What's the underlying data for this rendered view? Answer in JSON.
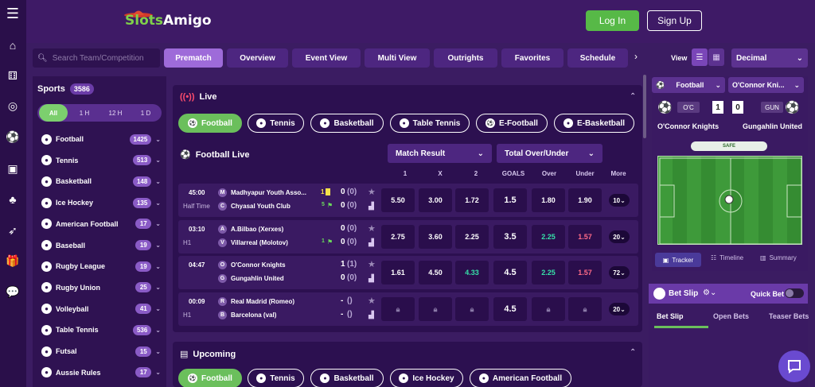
{
  "brand": {
    "part1": "Slots",
    "part2": "Amigo"
  },
  "header": {
    "login": "Log In",
    "signup": "Sign Up"
  },
  "search": {
    "placeholder": "Search Team/Competition"
  },
  "nav_tabs": [
    "Prematch",
    "Overview",
    "Event View",
    "Multi View",
    "Outrights",
    "Favorites",
    "Schedule"
  ],
  "view": {
    "label": "View",
    "odds_format": "Decimal"
  },
  "sports": {
    "title": "Sports",
    "total": "3586",
    "time_filters": [
      "All",
      "1 H",
      "12 H",
      "1 D"
    ],
    "items": [
      {
        "name": "Football",
        "count": "1425",
        "icon": "football-icon"
      },
      {
        "name": "Tennis",
        "count": "513",
        "icon": "tennis-icon"
      },
      {
        "name": "Basketball",
        "count": "148",
        "icon": "basketball-icon"
      },
      {
        "name": "Ice Hockey",
        "count": "135",
        "icon": "ice-hockey-icon"
      },
      {
        "name": "American Football",
        "count": "17",
        "icon": "american-football-icon"
      },
      {
        "name": "Baseball",
        "count": "19",
        "icon": "baseball-icon"
      },
      {
        "name": "Rugby League",
        "count": "19",
        "icon": "rugby-league-icon"
      },
      {
        "name": "Rugby Union",
        "count": "25",
        "icon": "rugby-union-icon"
      },
      {
        "name": "Volleyball",
        "count": "41",
        "icon": "volleyball-icon"
      },
      {
        "name": "Table Tennis",
        "count": "536",
        "icon": "table-tennis-icon"
      },
      {
        "name": "Futsal",
        "count": "15",
        "icon": "futsal-icon"
      },
      {
        "name": "Aussie Rules",
        "count": "17",
        "icon": "aussie-rules-icon"
      }
    ]
  },
  "live": {
    "title": "Live",
    "sport_tabs": [
      "Football",
      "Tennis",
      "Basketball",
      "Table Tennis",
      "E-Football",
      "E-Basketball"
    ],
    "section": "Football Live",
    "markets": [
      "Match Result",
      "Total Over/Under"
    ],
    "columns": [
      "1",
      "X",
      "2",
      "GOALS",
      "Over",
      "Under",
      "More"
    ],
    "matches": [
      {
        "time": "45:00",
        "period": "Half Time",
        "home": "Madhyapur Youth Asso...",
        "away": "Chyasal Youth Club",
        "home_letter": "M",
        "away_letter": "C",
        "home_cards": "1",
        "away_cards": "5",
        "home_score": "0",
        "home_sub": "(0)",
        "away_score": "0",
        "away_sub": "(0)",
        "o1": "5.50",
        "ox": "3.00",
        "o2": "1.72",
        "goals": "1.5",
        "over": "1.80",
        "under": "1.90",
        "more": "10"
      },
      {
        "time": "03:10",
        "period": "H1",
        "home": "A.Bilbao (Xerxes)",
        "away": "Villarreal (Molotov)",
        "home_letter": "A",
        "away_letter": "V",
        "home_cards": "",
        "away_cards": "1",
        "home_score": "0",
        "home_sub": "(0)",
        "away_score": "0",
        "away_sub": "(0)",
        "o1": "2.75",
        "ox": "3.60",
        "o2": "2.25",
        "goals": "3.5",
        "over": "2.25",
        "under": "1.57",
        "more": "20"
      },
      {
        "time": "04:47",
        "period": "",
        "home": "O'Connor Knights",
        "away": "Gungahlin United",
        "home_letter": "O",
        "away_letter": "G",
        "home_cards": "",
        "away_cards": "",
        "home_score": "1",
        "home_sub": "(1)",
        "away_score": "0",
        "away_sub": "(0)",
        "o1": "1.61",
        "ox": "4.50",
        "o2": "4.33",
        "goals": "4.5",
        "over": "2.25",
        "under": "1.57",
        "more": "72"
      },
      {
        "time": "00:09",
        "period": "H1",
        "home": "Real Madrid (Romeo)",
        "away": "Barcelona (val)",
        "home_letter": "R",
        "away_letter": "B",
        "home_cards": "",
        "away_cards": "",
        "home_score": "-",
        "home_sub": "()",
        "away_score": "-",
        "away_sub": "()",
        "o1": "",
        "ox": "",
        "o2": "",
        "goals": "4.5",
        "over": "",
        "under": "",
        "more": "20"
      }
    ]
  },
  "upcoming": {
    "title": "Upcoming",
    "sport_tabs": [
      "Football",
      "Tennis",
      "Basketball",
      "Ice Hockey",
      "American Football"
    ]
  },
  "tracker": {
    "sport": "Football",
    "match": "O'Connor Kni...",
    "home_abbr": "O'C",
    "away_abbr": "GUN",
    "home_score": "1",
    "away_score": "0",
    "home": "O'Connor Knights",
    "away": "Gungahlin United",
    "state": "SAFE",
    "tabs": [
      "Tracker",
      "Timeline",
      "Summary"
    ]
  },
  "betslip": {
    "title": "Bet Slip",
    "quick_bet": "Quick Bet",
    "tabs": [
      "Bet Slip",
      "Open Bets",
      "Teaser Bets"
    ]
  },
  "colors": {
    "accent_green": "#57b947",
    "tab_active": "#9e6bd9",
    "odd_up": "#36e0a8",
    "odd_down": "#ff6b88"
  }
}
